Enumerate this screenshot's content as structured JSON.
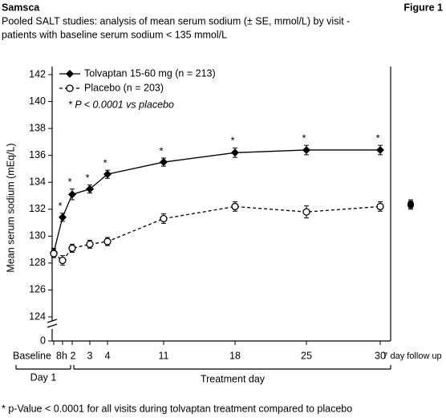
{
  "header": {
    "brand": "Samsca",
    "figure": "Figure 1"
  },
  "chart_data": {
    "type": "line",
    "title_lines": [
      "Pooled SALT studies: analysis of mean serum sodium (± SE, mmol/L) by visit -",
      "patients with baseline serum sodium < 135 mmol/L"
    ],
    "ylabel": "Mean serum sodium (mEq/L)",
    "xlabel": "Treatment day",
    "day1_label": "Day 1",
    "categories": [
      "Baseline",
      "8h",
      "2",
      "3",
      "4",
      "11",
      "18",
      "25",
      "30"
    ],
    "followup_label": "7 day follow up",
    "ylim": [
      124,
      142
    ],
    "yticks": [
      124,
      126,
      128,
      130,
      132,
      134,
      136,
      138,
      140,
      142
    ],
    "y_break_tick": 0,
    "note": "* P < 0.0001 vs placebo",
    "series": [
      {
        "name": "Tolvaptan 15-60 mg (n = 213)",
        "color": "#000000",
        "marker": "diamond",
        "dashed": false,
        "values": [
          128.8,
          131.4,
          133.1,
          133.5,
          134.6,
          135.5,
          136.2,
          136.4,
          136.4
        ],
        "errors": [
          0.3,
          0.3,
          0.4,
          0.3,
          0.3,
          0.3,
          0.35,
          0.35,
          0.35
        ],
        "markers": [
          null,
          "*",
          "*",
          "*",
          "*",
          "*",
          "*",
          "*",
          "*"
        ],
        "followup": 132.3,
        "followup_error": 0.3
      },
      {
        "name": "Placebo (n = 203)",
        "color": "#000000",
        "marker": "circle",
        "dashed": true,
        "values": [
          128.7,
          128.2,
          129.1,
          129.4,
          129.6,
          131.3,
          132.2,
          131.8,
          132.2
        ],
        "errors": [
          0.3,
          0.35,
          0.3,
          0.3,
          0.3,
          0.35,
          0.35,
          0.45,
          0.35
        ],
        "followup": 132.4,
        "followup_error": 0.3
      }
    ]
  },
  "footnote": "* p-Value < 0.0001 for all visits during tolvaptan treatment compared to placebo"
}
